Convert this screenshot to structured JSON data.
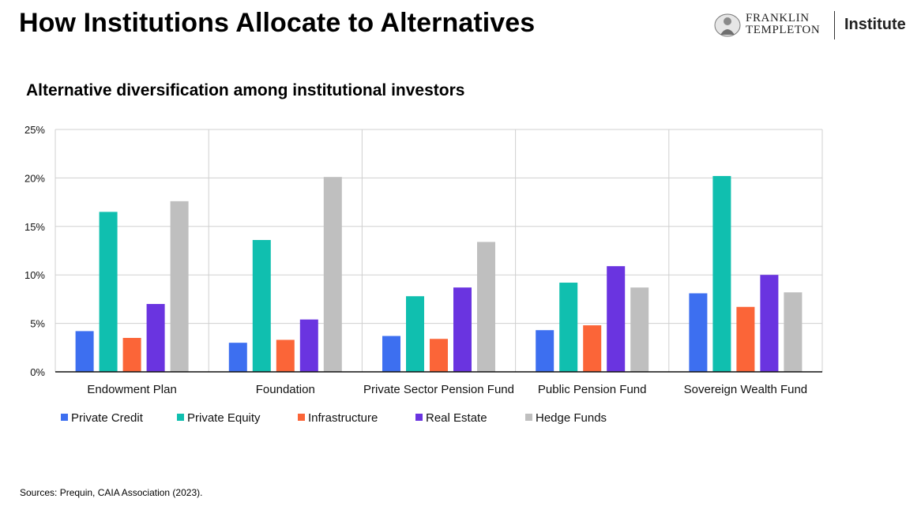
{
  "page": {
    "title": "How Institutions Allocate to Alternatives",
    "source": "Sources: Prequin, CAIA Association (2023)."
  },
  "logo": {
    "line1": "FRANKLIN",
    "line2": "TEMPLETON",
    "institute": "Institute"
  },
  "chart_data": {
    "type": "bar",
    "title": "Alternative diversification among institutional investors",
    "xlabel": "",
    "ylabel": "",
    "categories": [
      "Endowment Plan",
      "Foundation",
      "Private Sector Pension Fund",
      "Public Pension Fund",
      "Sovereign Wealth Fund"
    ],
    "ylim": [
      0,
      25
    ],
    "yticks": [
      0,
      5,
      10,
      15,
      20,
      25
    ],
    "ytick_labels": [
      "0%",
      "5%",
      "10%",
      "15%",
      "20%",
      "25%"
    ],
    "grid": true,
    "legend_position": "bottom-left",
    "series": [
      {
        "name": "Private Credit",
        "color": "#3d6ff0",
        "values": [
          4.2,
          3.0,
          3.7,
          4.3,
          8.1
        ]
      },
      {
        "name": "Private Equity",
        "color": "#10bfaf",
        "values": [
          16.5,
          13.6,
          7.8,
          9.2,
          20.2
        ]
      },
      {
        "name": "Infrastructure",
        "color": "#fb6538",
        "values": [
          3.5,
          3.3,
          3.4,
          4.8,
          6.7
        ]
      },
      {
        "name": "Real Estate",
        "color": "#6a34e0",
        "values": [
          7.0,
          5.4,
          8.7,
          10.9,
          10.0
        ]
      },
      {
        "name": "Hedge Funds",
        "color": "#bfbfbf",
        "values": [
          17.6,
          20.1,
          13.4,
          8.7,
          8.2
        ]
      }
    ]
  }
}
